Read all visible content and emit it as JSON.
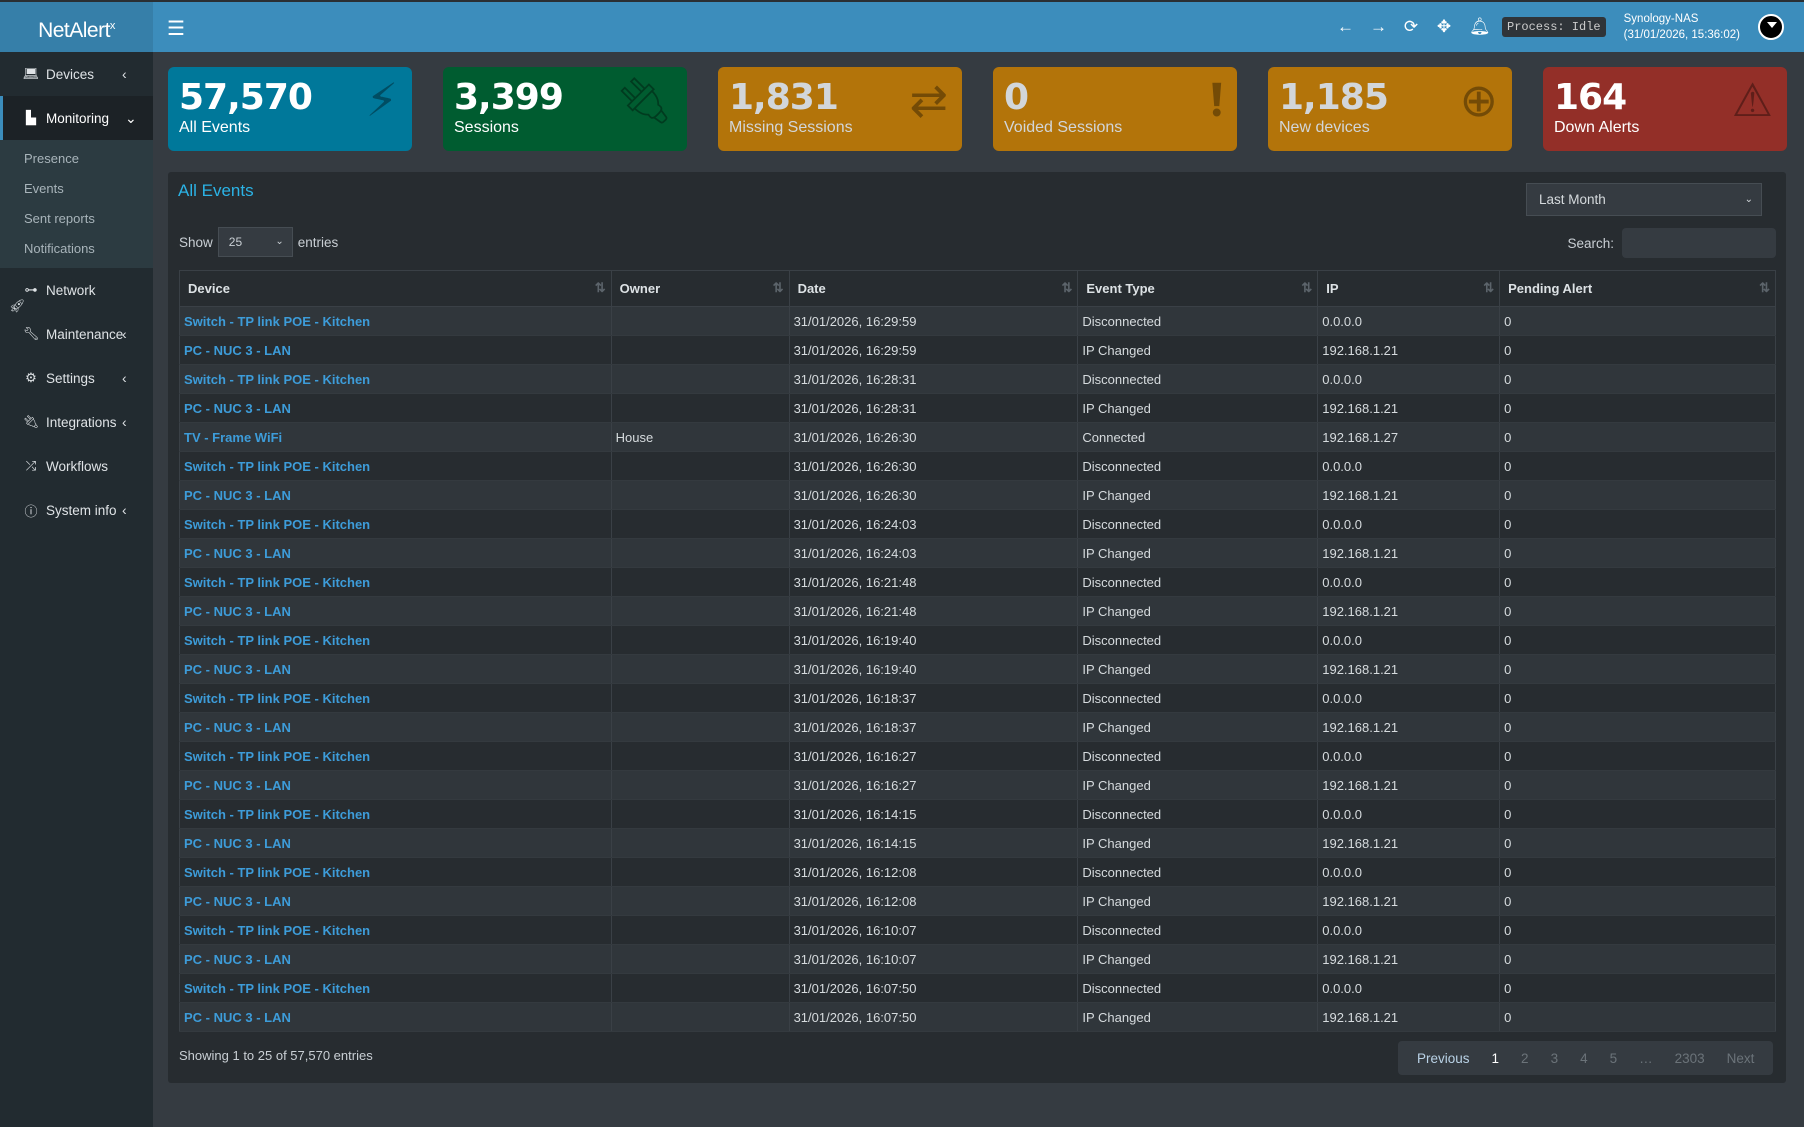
{
  "header": {
    "logo": "NetAlert",
    "logo_sup": "x",
    "process": "Process: Idle",
    "host": "Synology-NAS",
    "datetime": "(31/01/2026, 15:36:02)"
  },
  "sidebar": {
    "items": [
      {
        "label": "Devices",
        "icon": "laptop-icon",
        "chevron": "‹"
      },
      {
        "label": "Monitoring",
        "icon": "chart-icon",
        "chevron": "⌄",
        "active": true
      },
      {
        "label": "Network",
        "icon": "sitemap-icon"
      },
      {
        "label": "Maintenance",
        "icon": "wrench-icon",
        "chevron": "‹"
      },
      {
        "label": "Settings",
        "icon": "gear-icon",
        "chevron": "‹"
      },
      {
        "label": "Integrations",
        "icon": "plug-icon",
        "chevron": "‹"
      },
      {
        "label": "Workflows",
        "icon": "shuffle-icon"
      },
      {
        "label": "System info",
        "icon": "info-icon",
        "chevron": "‹"
      }
    ],
    "submenu": [
      "Presence",
      "Events",
      "Sent reports",
      "Notifications"
    ]
  },
  "stats": [
    {
      "value": "57,570",
      "label": "All Events",
      "color": "#00789a",
      "icon": "bolt-icon",
      "text": "#ffffff"
    },
    {
      "value": "3,399",
      "label": "Sessions",
      "color": "#005c30",
      "icon": "plug-icon",
      "text": "#ffffff"
    },
    {
      "value": "1,831",
      "label": "Missing Sessions",
      "color": "#b3740a",
      "icon": "exchange-icon",
      "text": "#d2d6da"
    },
    {
      "value": "0",
      "label": "Voided Sessions",
      "color": "#b3740a",
      "icon": "exclamation-icon",
      "text": "#d2d6da"
    },
    {
      "value": "1,185",
      "label": "New devices",
      "color": "#b3740a",
      "icon": "plus-icon",
      "text": "#d2d6da"
    },
    {
      "value": "164",
      "label": "Down Alerts",
      "color": "#932f28",
      "icon": "warning-icon",
      "text": "#ffffff"
    }
  ],
  "panel": {
    "title": "All Events",
    "range": "Last Month",
    "show_label": "Show",
    "show_value": "25",
    "entries_label": "entries",
    "search_label": "Search:",
    "columns": [
      "Device",
      "Owner",
      "Date",
      "Event Type",
      "IP",
      "Pending Alert"
    ],
    "rows": [
      [
        "Switch - TP link POE - Kitchen",
        "",
        "31/01/2026, 16:29:59",
        "Disconnected",
        "0.0.0.0",
        "0"
      ],
      [
        "PC - NUC 3 - LAN",
        "",
        "31/01/2026, 16:29:59",
        "IP Changed",
        "192.168.1.21",
        "0"
      ],
      [
        "Switch - TP link POE - Kitchen",
        "",
        "31/01/2026, 16:28:31",
        "Disconnected",
        "0.0.0.0",
        "0"
      ],
      [
        "PC - NUC 3 - LAN",
        "",
        "31/01/2026, 16:28:31",
        "IP Changed",
        "192.168.1.21",
        "0"
      ],
      [
        "TV - Frame WiFi",
        "House",
        "31/01/2026, 16:26:30",
        "Connected",
        "192.168.1.27",
        "0"
      ],
      [
        "Switch - TP link POE - Kitchen",
        "",
        "31/01/2026, 16:26:30",
        "Disconnected",
        "0.0.0.0",
        "0"
      ],
      [
        "PC - NUC 3 - LAN",
        "",
        "31/01/2026, 16:26:30",
        "IP Changed",
        "192.168.1.21",
        "0"
      ],
      [
        "Switch - TP link POE - Kitchen",
        "",
        "31/01/2026, 16:24:03",
        "Disconnected",
        "0.0.0.0",
        "0"
      ],
      [
        "PC - NUC 3 - LAN",
        "",
        "31/01/2026, 16:24:03",
        "IP Changed",
        "192.168.1.21",
        "0"
      ],
      [
        "Switch - TP link POE - Kitchen",
        "",
        "31/01/2026, 16:21:48",
        "Disconnected",
        "0.0.0.0",
        "0"
      ],
      [
        "PC - NUC 3 - LAN",
        "",
        "31/01/2026, 16:21:48",
        "IP Changed",
        "192.168.1.21",
        "0"
      ],
      [
        "Switch - TP link POE - Kitchen",
        "",
        "31/01/2026, 16:19:40",
        "Disconnected",
        "0.0.0.0",
        "0"
      ],
      [
        "PC - NUC 3 - LAN",
        "",
        "31/01/2026, 16:19:40",
        "IP Changed",
        "192.168.1.21",
        "0"
      ],
      [
        "Switch - TP link POE - Kitchen",
        "",
        "31/01/2026, 16:18:37",
        "Disconnected",
        "0.0.0.0",
        "0"
      ],
      [
        "PC - NUC 3 - LAN",
        "",
        "31/01/2026, 16:18:37",
        "IP Changed",
        "192.168.1.21",
        "0"
      ],
      [
        "Switch - TP link POE - Kitchen",
        "",
        "31/01/2026, 16:16:27",
        "Disconnected",
        "0.0.0.0",
        "0"
      ],
      [
        "PC - NUC 3 - LAN",
        "",
        "31/01/2026, 16:16:27",
        "IP Changed",
        "192.168.1.21",
        "0"
      ],
      [
        "Switch - TP link POE - Kitchen",
        "",
        "31/01/2026, 16:14:15",
        "Disconnected",
        "0.0.0.0",
        "0"
      ],
      [
        "PC - NUC 3 - LAN",
        "",
        "31/01/2026, 16:14:15",
        "IP Changed",
        "192.168.1.21",
        "0"
      ],
      [
        "Switch - TP link POE - Kitchen",
        "",
        "31/01/2026, 16:12:08",
        "Disconnected",
        "0.0.0.0",
        "0"
      ],
      [
        "PC - NUC 3 - LAN",
        "",
        "31/01/2026, 16:12:08",
        "IP Changed",
        "192.168.1.21",
        "0"
      ],
      [
        "Switch - TP link POE - Kitchen",
        "",
        "31/01/2026, 16:10:07",
        "Disconnected",
        "0.0.0.0",
        "0"
      ],
      [
        "PC - NUC 3 - LAN",
        "",
        "31/01/2026, 16:10:07",
        "IP Changed",
        "192.168.1.21",
        "0"
      ],
      [
        "Switch - TP link POE - Kitchen",
        "",
        "31/01/2026, 16:07:50",
        "Disconnected",
        "0.0.0.0",
        "0"
      ],
      [
        "PC - NUC 3 - LAN",
        "",
        "31/01/2026, 16:07:50",
        "IP Changed",
        "192.168.1.21",
        "0"
      ]
    ],
    "info": "Showing 1 to 25 of 57,570 entries",
    "pager": {
      "prev": "Previous",
      "pages": [
        "1",
        "2",
        "3",
        "4",
        "5",
        "…",
        "2303"
      ],
      "current": "1",
      "next": "Next"
    }
  }
}
